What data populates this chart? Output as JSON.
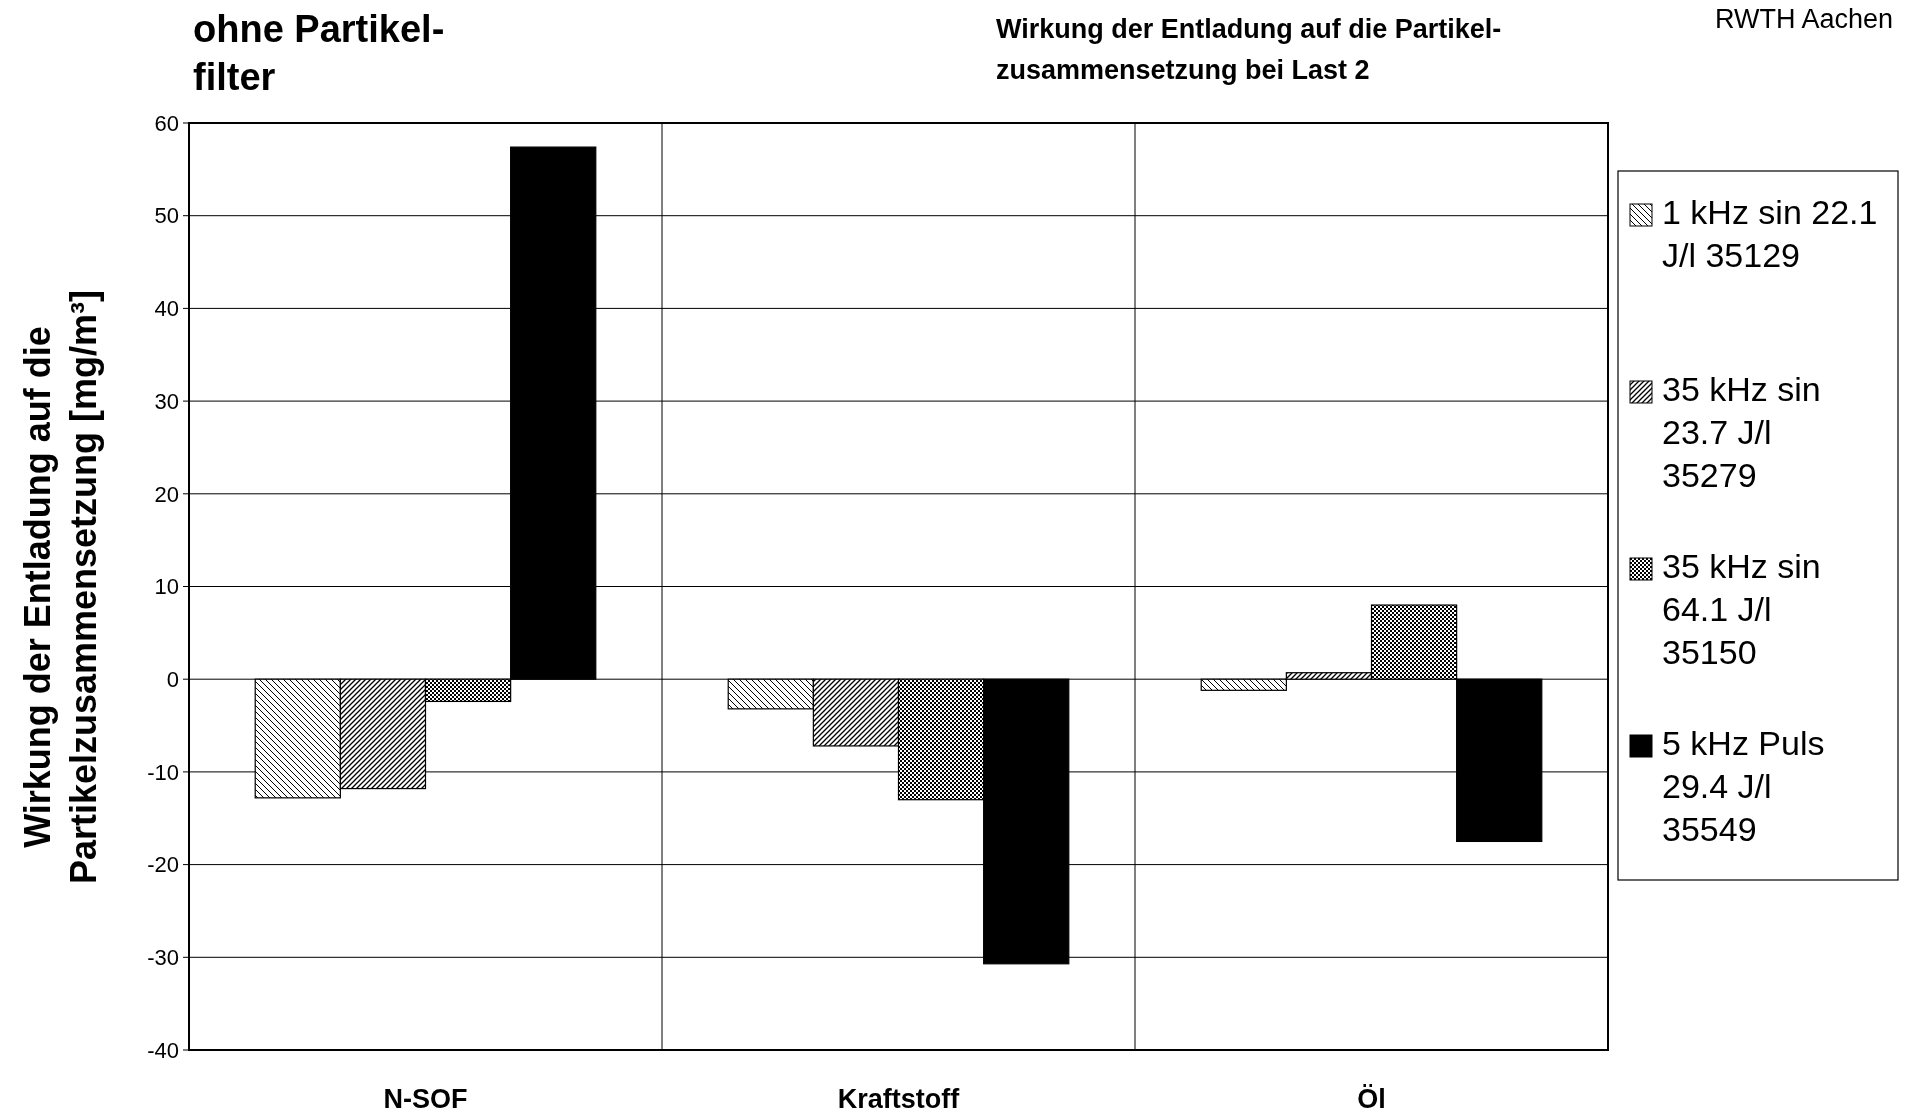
{
  "chart_data": {
    "type": "bar",
    "title": "Wirkung der Entladung auf die Partikel-\nzusammensetzung bei Last 2",
    "subtitle": "ohne Partikel-\nfilter",
    "ylabel": "Wirkung der Entladung auf die\nPartikelzusammensetzung [mg/m³]",
    "annotations": [
      "RWTH  Aachen"
    ],
    "categories": [
      "N-SOF",
      "Kraftstoff",
      "Öl"
    ],
    "series": [
      {
        "name": "1 kHz sin 22.1\nJ/l  35129",
        "color": "#000000",
        "values": [
          -12.8,
          -3.2,
          -1.2
        ]
      },
      {
        "name": "35 kHz sin\n23.7 J/l\n35279",
        "color": "#000000",
        "values": [
          -11.8,
          -7.2,
          0.7
        ]
      },
      {
        "name": "35 kHz sin\n64.1 J/l\n35150",
        "color": "#000000",
        "values": [
          -2.4,
          -13.0,
          8.0
        ]
      },
      {
        "name": "5 kHz Puls\n29.4 J/l\n35549",
        "color": "#000000",
        "values": [
          57.4,
          -30.7,
          -17.5
        ]
      }
    ],
    "ylim": [
      -40,
      60
    ],
    "yticks": [
      -40,
      -30,
      -20,
      -10,
      0,
      10,
      20,
      30,
      40,
      50,
      60
    ],
    "grid": true,
    "legend": "right"
  }
}
